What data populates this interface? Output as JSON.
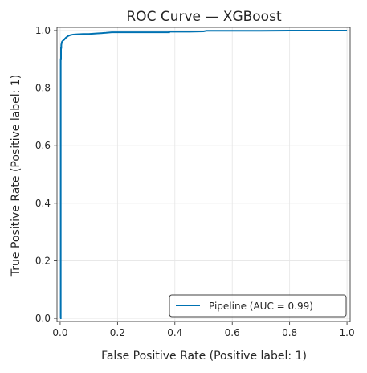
{
  "chart_data": {
    "type": "line",
    "title": "ROC Curve — XGBoost",
    "xlabel": "False Positive Rate (Positive label: 1)",
    "ylabel": "True Positive Rate (Positive label: 1)",
    "xlim": [
      0,
      1
    ],
    "ylim": [
      0,
      1
    ],
    "x_ticks": [
      0.0,
      0.2,
      0.4,
      0.6,
      0.8,
      1.0
    ],
    "y_ticks": [
      0.0,
      0.2,
      0.4,
      0.6,
      0.8,
      1.0
    ],
    "x_tick_labels": [
      "0.0",
      "0.2",
      "0.4",
      "0.6",
      "0.8",
      "1.0"
    ],
    "y_tick_labels": [
      "0.0",
      "0.2",
      "0.4",
      "0.6",
      "0.8",
      "1.0"
    ],
    "grid": true,
    "legend_position": "lower-right",
    "series": [
      {
        "name": "Pipeline (AUC = 0.99)",
        "color": "#0072b2",
        "x": [
          0,
          0.002,
          0.002,
          0.003,
          0.003,
          0.004,
          0.004,
          0.005,
          0.006,
          0.007,
          0.009,
          0.011,
          0.014,
          0.017,
          0.02,
          0.024,
          0.028,
          0.035,
          0.045,
          0.06,
          0.08,
          0.1,
          0.13,
          0.16,
          0.18,
          0.22,
          0.3,
          0.38,
          0.38,
          0.45,
          0.5,
          0.51,
          0.6,
          0.7,
          0.8,
          0.9,
          1.0
        ],
        "y": [
          0,
          0,
          0.9,
          0.9,
          0.94,
          0.94,
          0.95,
          0.955,
          0.96,
          0.962,
          0.964,
          0.966,
          0.968,
          0.972,
          0.975,
          0.978,
          0.981,
          0.984,
          0.986,
          0.987,
          0.988,
          0.988,
          0.99,
          0.992,
          0.994,
          0.994,
          0.994,
          0.994,
          0.996,
          0.996,
          0.997,
          0.999,
          0.999,
          0.999,
          1.0,
          1.0,
          1.0
        ]
      }
    ]
  }
}
